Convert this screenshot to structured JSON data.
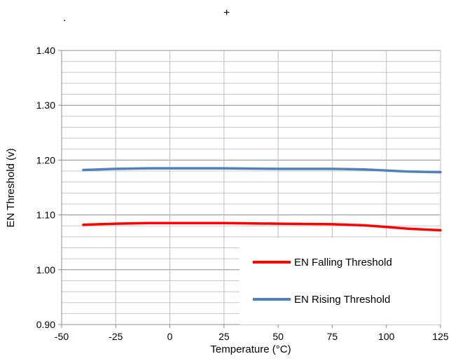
{
  "marks": {
    "dot": ".",
    "plus": "+"
  },
  "chart_data": {
    "type": "line",
    "title": "",
    "xlabel": "Temperature (°C)",
    "ylabel": "EN Threshold (v)",
    "xlim": [
      -50,
      125
    ],
    "ylim": [
      0.9,
      1.4
    ],
    "x_ticks": [
      -50,
      -25,
      0,
      25,
      50,
      75,
      100,
      125
    ],
    "x_tick_labels": [
      "-50",
      "-25",
      "0",
      "25",
      "50",
      "75",
      "100",
      "125"
    ],
    "y_ticks": [
      0.9,
      1.0,
      1.1,
      1.2,
      1.3,
      1.4
    ],
    "y_tick_labels": [
      "0.90",
      "1.00",
      "1.10",
      "1.20",
      "1.30",
      "1.40"
    ],
    "grid": true,
    "y_minor_step": 0.02,
    "legend_position": "bottom-right",
    "series": [
      {
        "name": "EN Falling Threshold",
        "color": "#ff0000",
        "x": [
          -40,
          -25,
          -10,
          0,
          25,
          50,
          75,
          90,
          100,
          110,
          125
        ],
        "y": [
          1.082,
          1.084,
          1.085,
          1.085,
          1.085,
          1.084,
          1.083,
          1.081,
          1.078,
          1.075,
          1.072
        ]
      },
      {
        "name": "EN Rising Threshold",
        "color": "#4f81bd",
        "x": [
          -40,
          -25,
          -10,
          0,
          25,
          50,
          75,
          90,
          100,
          110,
          125
        ],
        "y": [
          1.182,
          1.184,
          1.185,
          1.185,
          1.185,
          1.184,
          1.184,
          1.183,
          1.181,
          1.179,
          1.178
        ]
      }
    ]
  }
}
